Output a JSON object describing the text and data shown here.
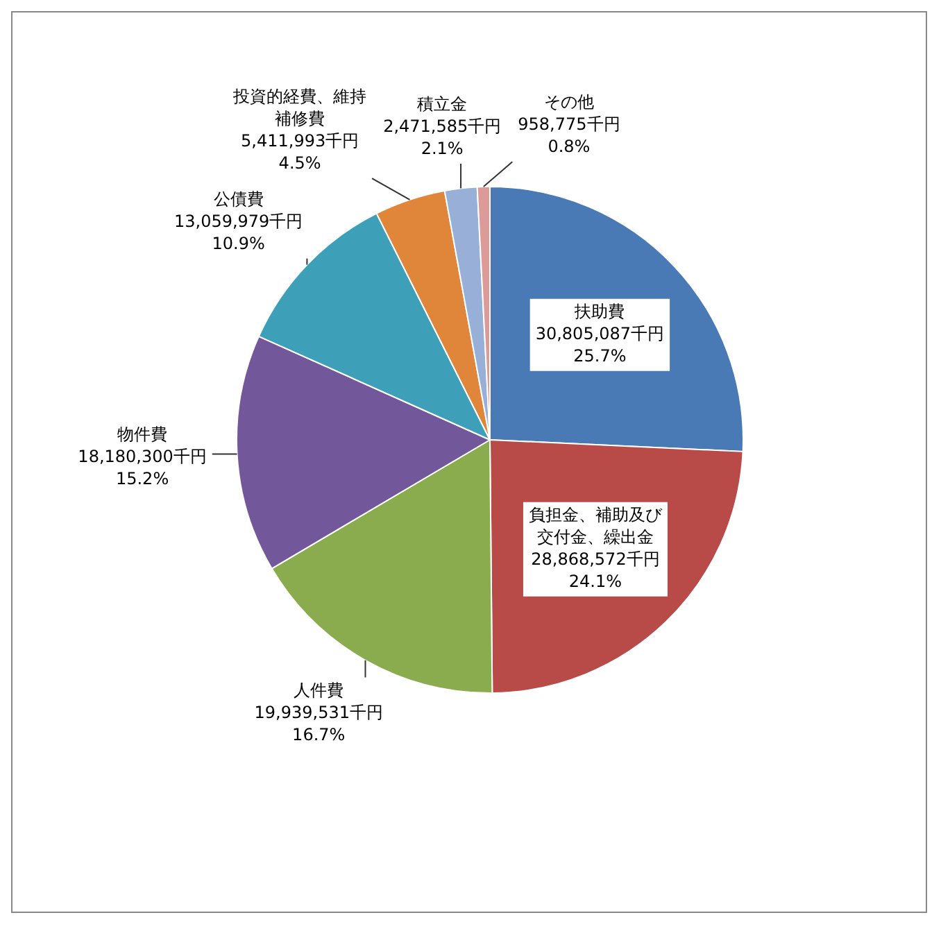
{
  "chart_data": {
    "type": "pie",
    "categories": [
      "扶助費",
      "負担金、補助及び交付金、繰出金",
      "人件費",
      "物件費",
      "公債費",
      "投資的経費、維持補修費",
      "積立金",
      "その他"
    ],
    "values": [
      30805087,
      28868572,
      19939531,
      18180300,
      13059979,
      5411993,
      2471585,
      958775
    ],
    "colors": [
      "#4a7ab5",
      "#b84a47",
      "#8aab4e",
      "#72589a",
      "#3ea0b8",
      "#e0863a",
      "#98afd8",
      "#dc9a98"
    ],
    "value_labels": [
      "30,805,087千円\n25.7%",
      "28,868,572千円\n24.1%",
      "19,939,531千円\n16.7%",
      "18,180,300千円\n15.2%",
      "13,059,979千円\n10.9%",
      "5,411,993千円\n4.5%",
      "2,471,585千円\n2.1%",
      "958,775千円\n0.8%"
    ],
    "legend": false
  }
}
